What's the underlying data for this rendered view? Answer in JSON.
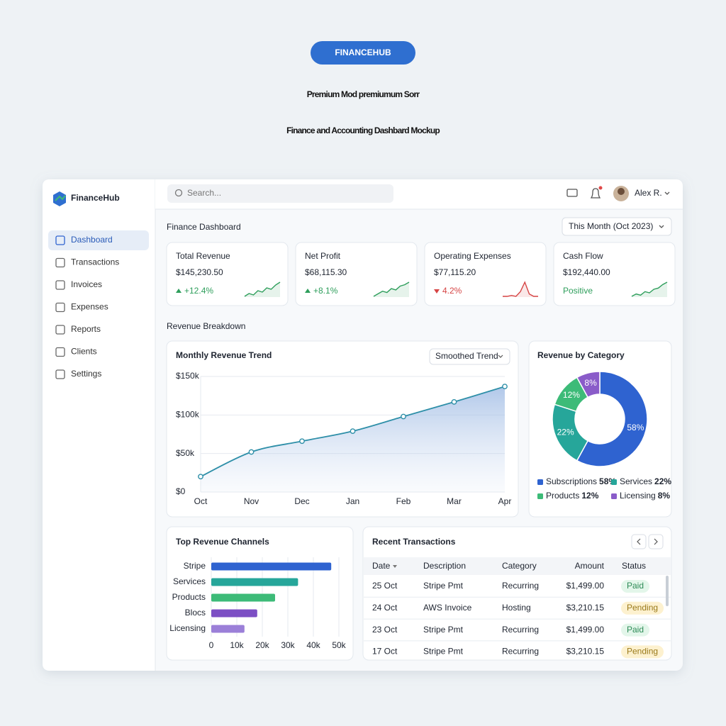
{
  "badge": "FINANCEHUB",
  "headline": [
    "Premium Mod premiumum Sorr",
    "Finance and Accounting Dashbard Mockup"
  ],
  "sidebar": {
    "brand": "FinanceHub",
    "nav": [
      "Dashboard",
      "Transactions",
      "Invoices",
      "Expenses",
      "Reports",
      "Clients",
      "Settings"
    ]
  },
  "topbar": {
    "search": "Search...",
    "user": "Alex R."
  },
  "page_title": "Finance Dashboard",
  "period": "This Month (Oct 2023)",
  "kpis": [
    {
      "label": "Total Revenue",
      "value": "$145,230.50",
      "change": "+12.4%",
      "direction": "up",
      "color": "#2e9e5b",
      "spark": [
        3,
        4,
        3.5,
        5,
        4.5,
        6,
        5.5,
        7,
        8
      ]
    },
    {
      "label": "Net Profit",
      "value": "$68,115.30",
      "change": "+8.1%",
      "direction": "up",
      "color": "#2e9e5b",
      "spark": [
        2,
        3,
        4,
        3.5,
        5,
        4.5,
        6,
        6.5,
        7.5
      ]
    },
    {
      "label": "Operating Expenses",
      "value": "$77,115.20",
      "change": "4.2%",
      "direction": "down",
      "color": "#d64545",
      "spark": [
        3,
        3,
        3.2,
        3,
        4,
        6,
        3.5,
        3,
        3
      ]
    },
    {
      "label": "Cash Flow",
      "value": "$192,440.00",
      "change": "Positive",
      "color": "#2e9e5b",
      "spark": [
        2,
        3,
        2.5,
        4,
        3.5,
        5,
        5.5,
        7,
        8
      ]
    }
  ],
  "section_title": "Revenue Breakdown",
  "trend_chart": {
    "type": "line",
    "title": "Monthly Revenue Trend",
    "control": "Smoothed Trend",
    "categories": [
      "Oct",
      "Nov",
      "Dec",
      "Jan",
      "Feb",
      "Mar",
      "Apr"
    ],
    "values": [
      20000,
      52000,
      66000,
      79000,
      98000,
      117000,
      137000
    ],
    "ylim": [
      0,
      150000
    ],
    "yticks": [
      {
        "value": 0,
        "label": "$0"
      },
      {
        "value": 50000,
        "label": "$50k"
      },
      {
        "value": 100000,
        "label": "$100k"
      },
      {
        "value": 150000,
        "label": "$150k"
      }
    ],
    "color": "#2e8fa8",
    "grid": true
  },
  "category_chart": {
    "type": "donut",
    "title": "Revenue by Category",
    "categories": [
      "Subscriptions",
      "Services",
      "Products",
      "Licensing"
    ],
    "values": [
      58,
      22,
      12,
      8
    ],
    "value_labels": [
      "58%",
      "22%",
      "12%",
      "8%"
    ],
    "colors": [
      "#2f63d0",
      "#26a69a",
      "#3dbb78",
      "#8a5cc9"
    ]
  },
  "channels_chart": {
    "type": "bar",
    "orientation": "horizontal",
    "title": "Top Revenue Channels",
    "categories": [
      "Stripe",
      "Services",
      "Products",
      "Blocs",
      "Licensing"
    ],
    "values": [
      47000,
      34000,
      25000,
      18000,
      13000
    ],
    "colors": [
      "#2f63d0",
      "#26a69a",
      "#3dbb78",
      "#7c4fc4",
      "#9b7fd8"
    ],
    "xlim": [
      0,
      50000
    ],
    "xticks": [
      0,
      {
        "value": 10000,
        "label": "10k"
      },
      {
        "value": 20000,
        "label": "20k"
      },
      {
        "value": 30000,
        "label": "30k"
      },
      {
        "value": 40000,
        "label": "40k"
      },
      {
        "value": 50000,
        "label": "50k"
      }
    ],
    "grid": true
  },
  "transactions": {
    "title": "Recent Transactions",
    "columns": [
      "Date",
      "Description",
      "Category",
      "Amount",
      "Status"
    ],
    "rows": [
      {
        "date": "25 Oct",
        "description": "Stripe Pmt",
        "category": "Recurring",
        "amount": "$1,499.00",
        "status": "Paid",
        "status_color": "#2e8b57",
        "status_bg": "#e3f6ea"
      },
      {
        "date": "24 Oct",
        "description": "AWS Invoice",
        "category": "Hosting",
        "amount": "$3,210.15",
        "status": "Pending",
        "status_color": "#9a7a1a",
        "status_bg": "#fdf1cf"
      },
      {
        "date": "23 Oct",
        "description": "Stripe Pmt",
        "category": "Recurring",
        "amount": "$1,499.00",
        "status": "Paid",
        "status_color": "#2e8b57",
        "status_bg": "#e3f6ea"
      },
      {
        "date": "17 Oct",
        "description": "Stripe Pmt",
        "category": "Recurring",
        "amount": "$3,210.15",
        "status": "Pending",
        "status_color": "#9a7a1a",
        "status_bg": "#fdf1cf"
      }
    ]
  }
}
